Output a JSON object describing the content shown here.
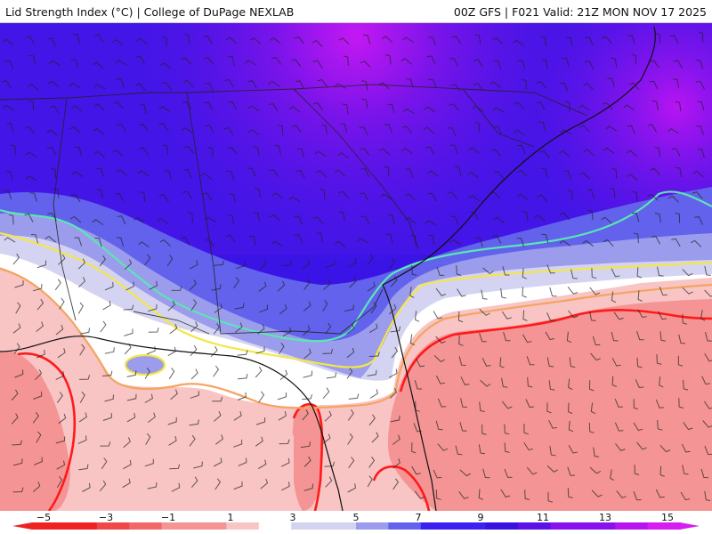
{
  "header": {
    "title_left": "Lid Strength Index (°C) | College of DuPage NEXLAB",
    "title_right": "00Z GFS | F021 Valid: 21Z MON NOV 17 2025"
  },
  "legend": {
    "tick_labels": [
      "−5",
      "−3",
      "−1",
      "1",
      "3",
      "5",
      "7",
      "9",
      "11",
      "13",
      "15"
    ],
    "colors": {
      "neg_5": "#ee2222",
      "neg_4": "#f04848",
      "neg_3": "#f26868",
      "neg_2": "#f49494",
      "neg_1": "#f8c4c4",
      "zero": "#ffffff",
      "pos_1": "#d4d4f2",
      "pos_2": "#9c9cec",
      "pos_4": "#6262ec",
      "pos_6": "#3c22f0",
      "pos_8": "#3a12e0",
      "pos_10": "#5a12e6",
      "pos_12": "#8812ee",
      "pos_14": "#b814f2",
      "pos_15": "#d61ef0"
    }
  },
  "contours": {
    "neg_1_color": "#ff0000",
    "zero_color": "#f4a460",
    "pos_1_color": "#f4e64a",
    "pos_2_color": "#5ae6b4"
  }
}
